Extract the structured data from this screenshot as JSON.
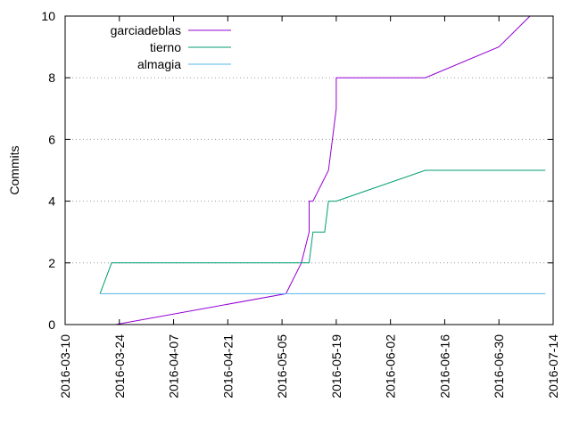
{
  "chart_data": {
    "type": "line",
    "title": "",
    "xlabel": "",
    "ylabel": "Commits",
    "ylim": [
      0,
      10
    ],
    "xlim": [
      "2016-03-10",
      "2016-07-14"
    ],
    "y_ticks": [
      0,
      2,
      4,
      6,
      8,
      10
    ],
    "x_ticks": [
      "2016-03-10",
      "2016-03-24",
      "2016-04-07",
      "2016-04-21",
      "2016-05-05",
      "2016-05-19",
      "2016-06-02",
      "2016-06-16",
      "2016-06-30",
      "2016-07-14"
    ],
    "grid": "horizontal dotted",
    "legend_position": "top-left",
    "series": [
      {
        "name": "garciadeblas",
        "color": "#9400d3",
        "points": [
          [
            "2016-03-23",
            0
          ],
          [
            "2016-05-06",
            1
          ],
          [
            "2016-05-10",
            2
          ],
          [
            "2016-05-12",
            3
          ],
          [
            "2016-05-12",
            4
          ],
          [
            "2016-05-13",
            4
          ],
          [
            "2016-05-17",
            5
          ],
          [
            "2016-05-19",
            7
          ],
          [
            "2016-05-19",
            8
          ],
          [
            "2016-06-11",
            8
          ],
          [
            "2016-06-30",
            9
          ],
          [
            "2016-07-08",
            10
          ]
        ]
      },
      {
        "name": "tierno",
        "color": "#009e73",
        "points": [
          [
            "2016-03-19",
            1
          ],
          [
            "2016-03-22",
            2
          ],
          [
            "2016-05-12",
            2
          ],
          [
            "2016-05-13",
            3
          ],
          [
            "2016-05-16",
            3
          ],
          [
            "2016-05-17",
            4
          ],
          [
            "2016-05-19",
            4
          ],
          [
            "2016-06-11",
            5
          ],
          [
            "2016-07-12",
            5
          ]
        ]
      },
      {
        "name": "almagia",
        "color": "#56b4e9",
        "points": [
          [
            "2016-03-19",
            1
          ],
          [
            "2016-07-12",
            1
          ]
        ]
      }
    ]
  }
}
